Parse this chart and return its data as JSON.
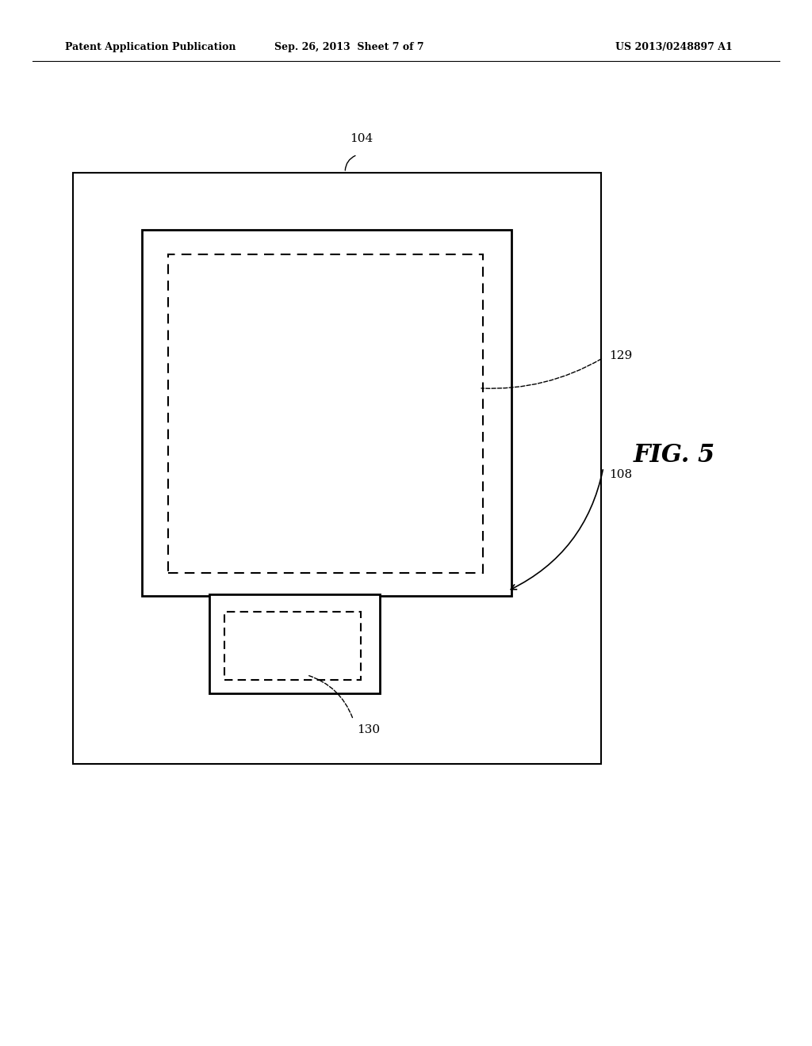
{
  "bg_color": "#ffffff",
  "text_color": "#000000",
  "header_left": "Patent Application Publication",
  "header_mid": "Sep. 26, 2013  Sheet 7 of 7",
  "header_right": "US 2013/0248897 A1",
  "fig_label": "FIG. 5",
  "label_104": "104",
  "label_108": "108",
  "label_129": "129",
  "label_130": "130"
}
